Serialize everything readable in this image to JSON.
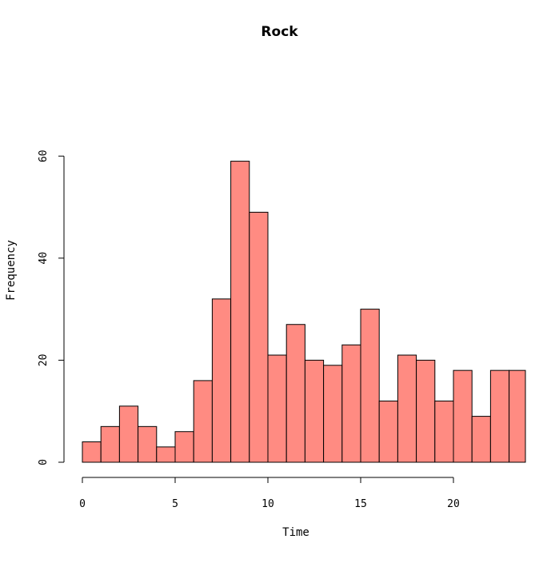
{
  "chart_data": {
    "type": "bar",
    "title": "Rock",
    "xlabel": "Time",
    "ylabel": "Frequency",
    "bin_width": 1,
    "bins": [
      {
        "start": 0,
        "end": 1,
        "count": 4
      },
      {
        "start": 1,
        "end": 2,
        "count": 7
      },
      {
        "start": 2,
        "end": 3,
        "count": 11
      },
      {
        "start": 3,
        "end": 4,
        "count": 7
      },
      {
        "start": 4,
        "end": 5,
        "count": 3
      },
      {
        "start": 5,
        "end": 6,
        "count": 6
      },
      {
        "start": 6,
        "end": 7,
        "count": 16
      },
      {
        "start": 7,
        "end": 8,
        "count": 32
      },
      {
        "start": 8,
        "end": 9,
        "count": 59
      },
      {
        "start": 9,
        "end": 10,
        "count": 49
      },
      {
        "start": 10,
        "end": 11,
        "count": 21
      },
      {
        "start": 11,
        "end": 12,
        "count": 27
      },
      {
        "start": 12,
        "end": 13,
        "count": 20
      },
      {
        "start": 13,
        "end": 14,
        "count": 19
      },
      {
        "start": 14,
        "end": 15,
        "count": 23
      },
      {
        "start": 15,
        "end": 16,
        "count": 30
      },
      {
        "start": 16,
        "end": 17,
        "count": 12
      },
      {
        "start": 17,
        "end": 18,
        "count": 21
      },
      {
        "start": 18,
        "end": 19,
        "count": 20
      },
      {
        "start": 19,
        "end": 20,
        "count": 12
      },
      {
        "start": 20,
        "end": 21,
        "count": 18
      },
      {
        "start": 21,
        "end": 22,
        "count": 9
      },
      {
        "start": 22,
        "end": 23,
        "count": 18
      },
      {
        "start": 23,
        "end": 24,
        "count": 18
      }
    ],
    "xticks": [
      0,
      5,
      10,
      15,
      20
    ],
    "yticks": [
      0,
      20,
      40,
      60
    ],
    "xlim": [
      0,
      24
    ],
    "ylim": [
      0,
      60
    ],
    "grid": false,
    "bar_color": "#ff8b82",
    "edge_color": "#000000"
  }
}
